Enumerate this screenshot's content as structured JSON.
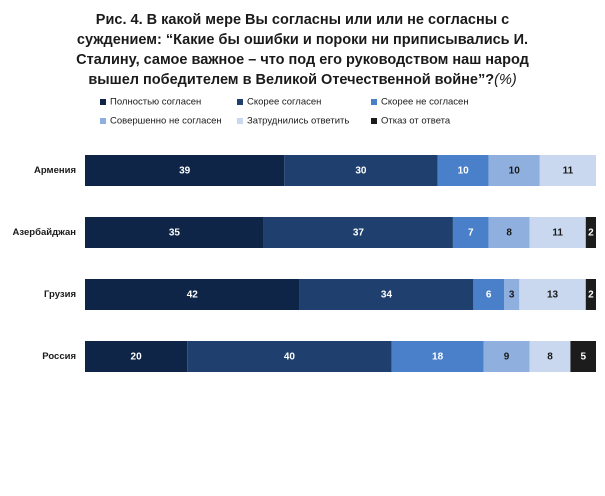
{
  "chart_data": {
    "type": "bar",
    "orientation": "horizontal",
    "stacked": true,
    "title_lines": [
      "Рис. 4.  В какой мере Вы согласны или или не согласны с",
      "суждением: “Какие бы ошибки и пороки ни приписывались И.",
      "Сталину, самое важное – что под его руководством наш народ",
      "вышел победителем в Великой Отечественной войне”?"
    ],
    "title_suffix": "(%)",
    "categories": [
      "Армения",
      "Азербайджан",
      "Грузия",
      "Россия"
    ],
    "series": [
      {
        "name": "Полностью согласен",
        "color": "#0f2547",
        "label_color": "#ffffff",
        "values": [
          39,
          35,
          42,
          20
        ]
      },
      {
        "name": "Скорее согласен",
        "color": "#1f3f6e",
        "label_color": "#ffffff",
        "values": [
          30,
          37,
          34,
          40
        ]
      },
      {
        "name": "Скорее не согласен",
        "color": "#4a7fca",
        "label_color": "#ffffff",
        "values": [
          10,
          7,
          6,
          18
        ]
      },
      {
        "name": "Совершенно не согласен",
        "color": "#8fb0df",
        "label_color": "#1a1a1a",
        "values": [
          10,
          8,
          3,
          9
        ]
      },
      {
        "name": "Затруднились ответить",
        "color": "#c9d8ef",
        "label_color": "#1a1a1a",
        "values": [
          11,
          11,
          13,
          8
        ]
      },
      {
        "name": "Отказ от ответа",
        "color": "#1c1c1c",
        "label_color": "#ffffff",
        "values": [
          0,
          2,
          2,
          5
        ]
      }
    ],
    "xlim": [
      0,
      100
    ],
    "grid": false,
    "legend_position": "top"
  }
}
